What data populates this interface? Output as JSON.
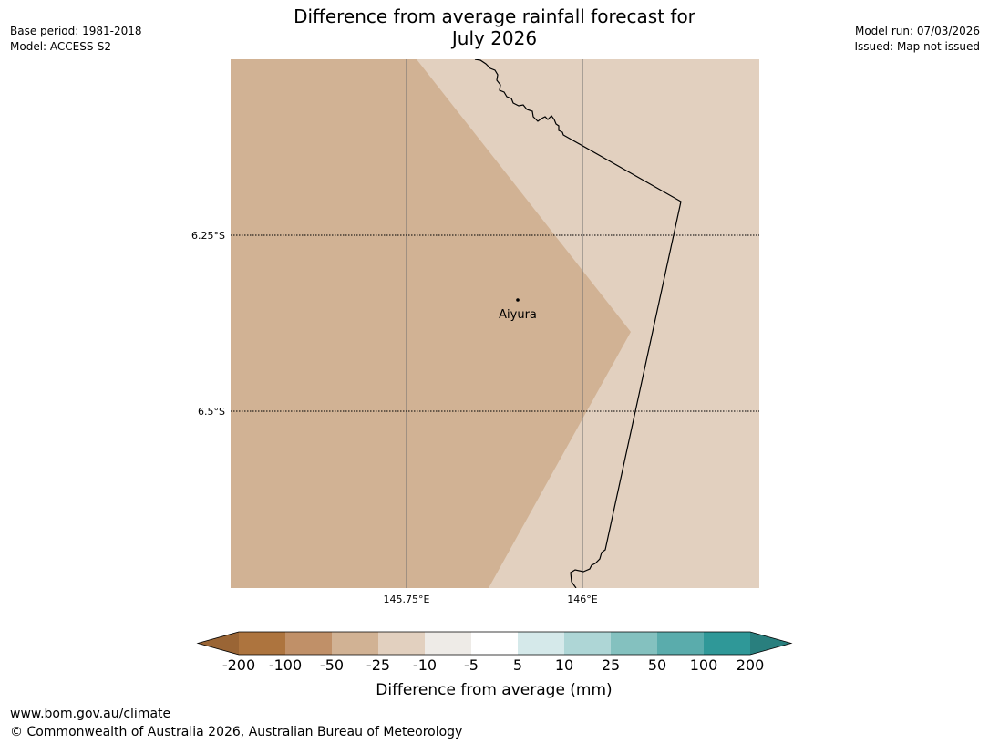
{
  "header": {
    "title_line1": "Difference from average rainfall forecast for",
    "title_line2": "July 2026",
    "base_period": "Base period: 1981-2018",
    "model": "Model: ACCESS-S2",
    "model_run": "Model run: 07/03/2026",
    "issued": "Issued: Map not issued"
  },
  "map": {
    "location_name": "Aiyura",
    "lat_labels": [
      "6.25°S",
      "6.5°S"
    ],
    "lon_labels": [
      "145.75°E",
      "146°E"
    ],
    "colors": {
      "drier_region": "#d1b294",
      "slightly_drier_region": "#e2d0bf"
    }
  },
  "colorbar": {
    "title": "Difference from average (mm)",
    "tick_labels": [
      "-200",
      "-100",
      "-50",
      "-25",
      "-10",
      "-5",
      "5",
      "10",
      "25",
      "50",
      "100",
      "200"
    ],
    "colors": [
      "#9a6535",
      "#ad743e",
      "#c09068",
      "#d1b294",
      "#e2d0bf",
      "#eeebe7",
      "#ffffff",
      "#d5e9ea",
      "#aed6d6",
      "#84c1bf",
      "#5aacac",
      "#2f9898",
      "#297f7e"
    ]
  },
  "footer": {
    "url": "www.bom.gov.au/climate",
    "copyright": "© Commonwealth of Australia 2026, Australian Bureau of Meteorology"
  }
}
